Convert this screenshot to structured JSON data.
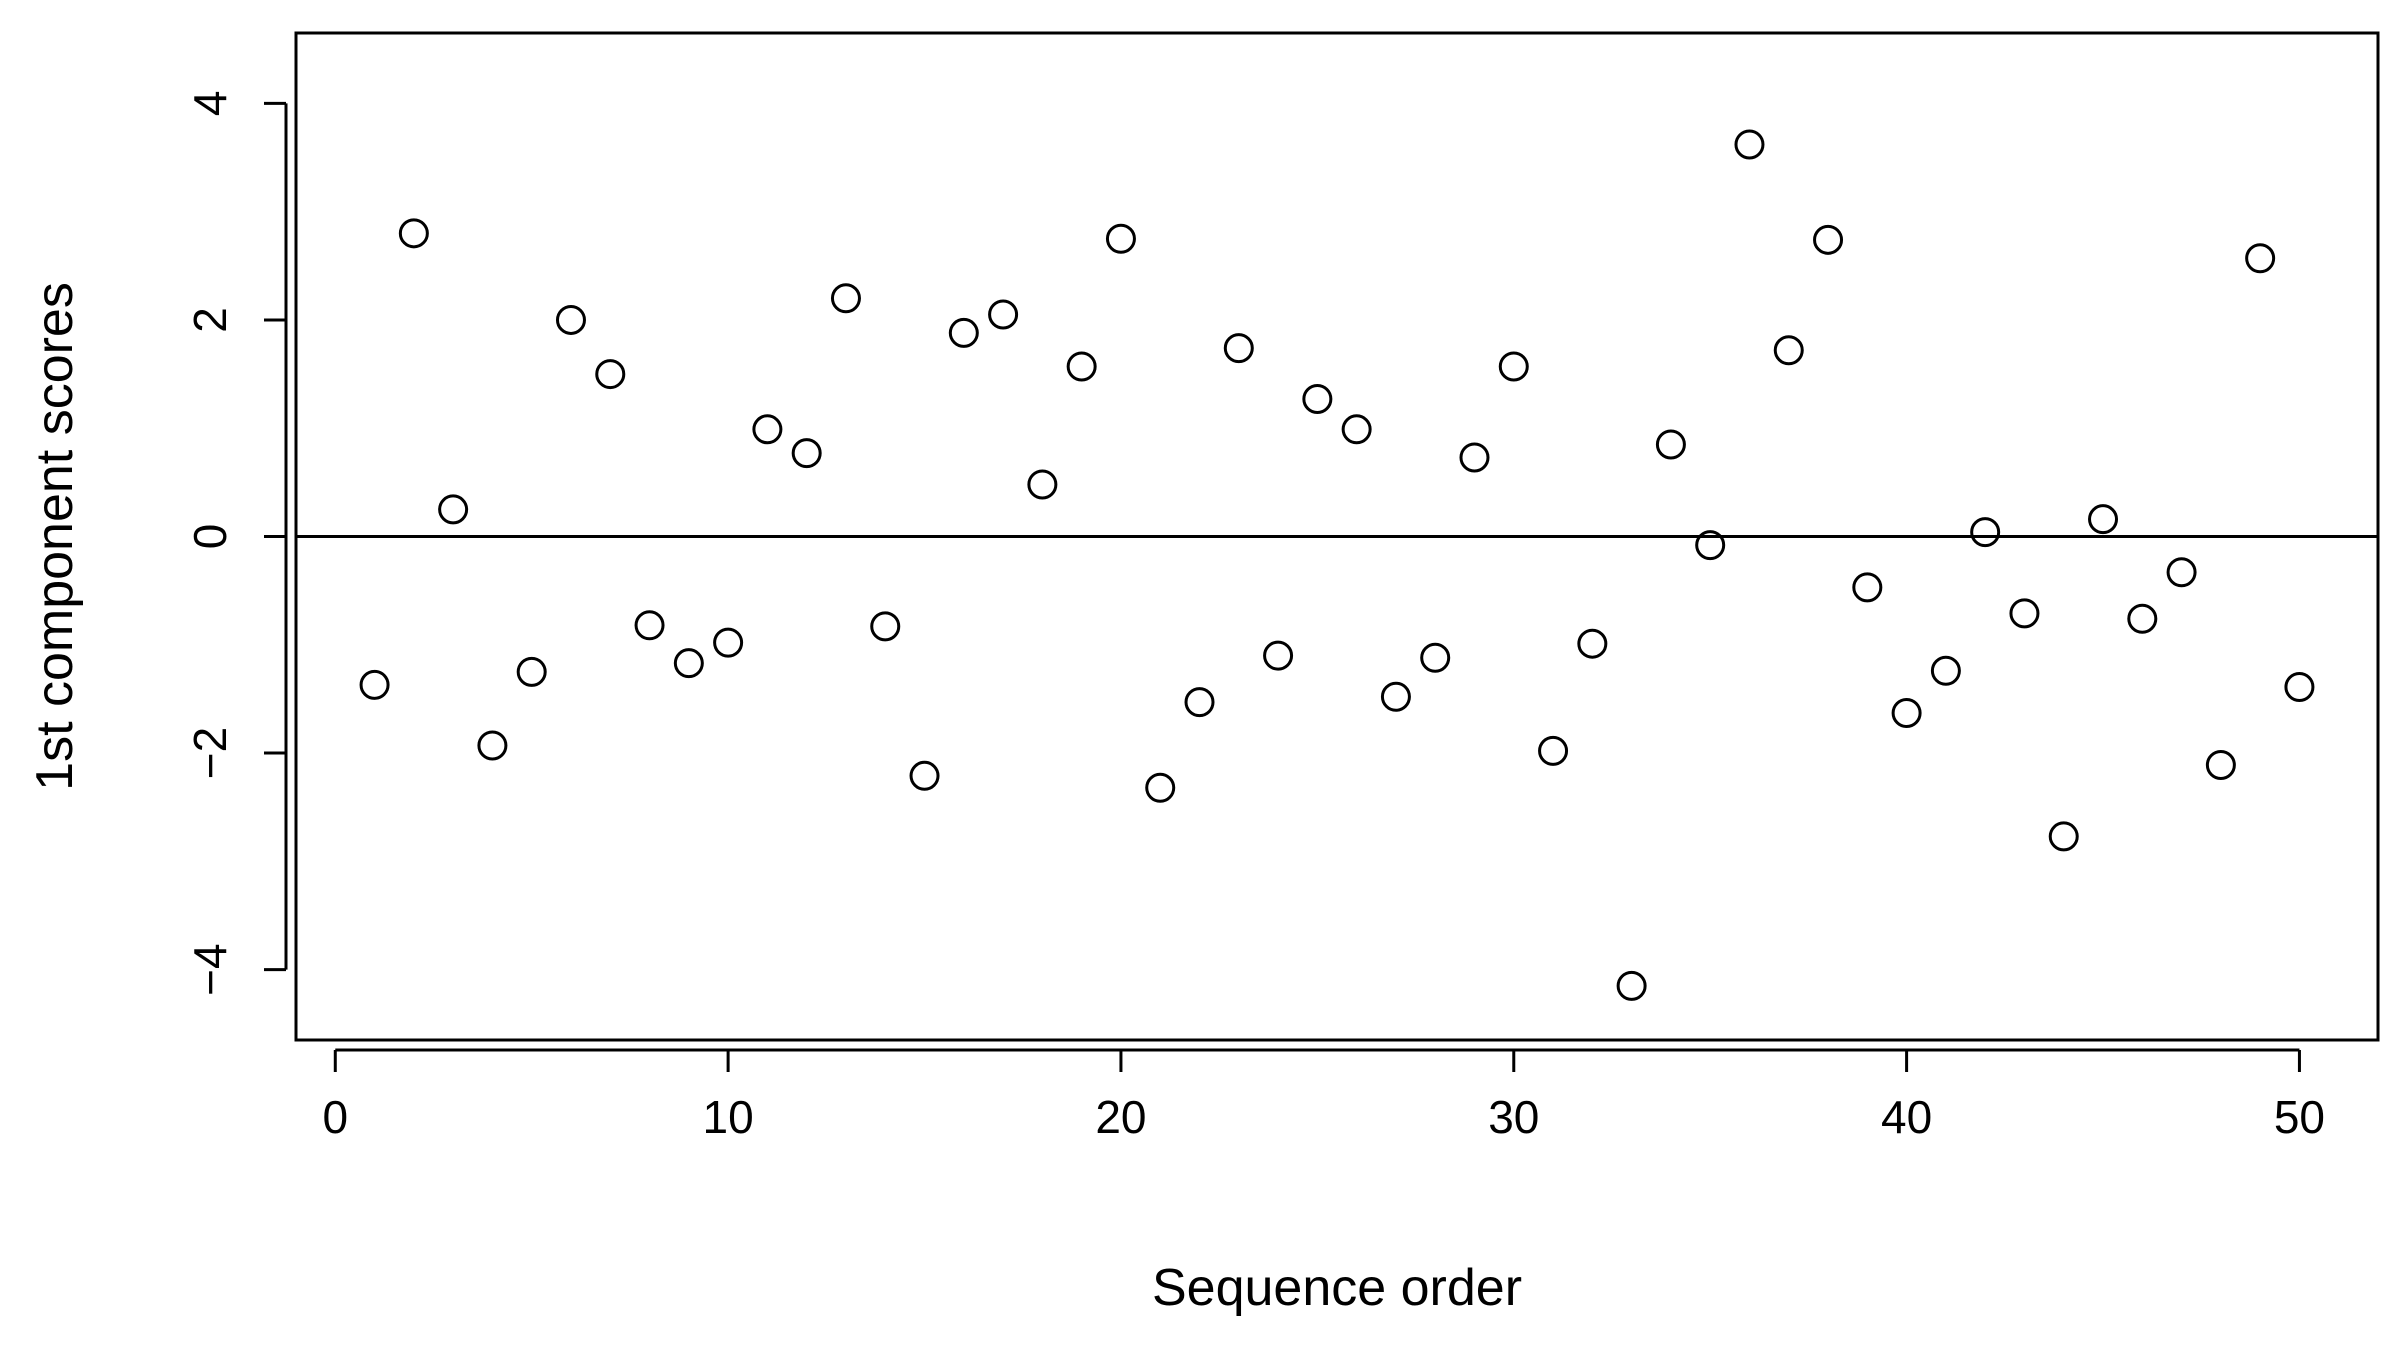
{
  "chart_data": {
    "type": "scatter",
    "title": "",
    "xlabel": "Sequence order",
    "ylabel": "1st component scores",
    "xlim": [
      -1,
      52
    ],
    "ylim": [
      -4.65,
      4.65
    ],
    "x_ticks": [
      0,
      10,
      20,
      30,
      40,
      50
    ],
    "x_tick_labels": [
      "0",
      "10",
      "20",
      "30",
      "40",
      "50"
    ],
    "y_ticks": [
      -4,
      -2,
      0,
      2,
      4
    ],
    "y_tick_labels": [
      "−4",
      "−2",
      "0",
      "2",
      "4"
    ],
    "reference_line": {
      "orientation": "horizontal",
      "y": 0
    },
    "grid": false,
    "marker": "open-circle",
    "x": [
      1,
      2,
      3,
      4,
      5,
      6,
      7,
      8,
      9,
      10,
      11,
      12,
      13,
      14,
      15,
      16,
      17,
      18,
      19,
      20,
      21,
      22,
      23,
      24,
      25,
      26,
      27,
      28,
      29,
      30,
      31,
      32,
      33,
      34,
      35,
      36,
      37,
      38,
      39,
      40,
      41,
      42,
      43,
      44,
      45,
      46,
      47,
      48,
      49,
      50
    ],
    "y": [
      -1.37,
      2.8,
      0.25,
      -1.93,
      -1.25,
      2.0,
      1.5,
      -0.82,
      -1.17,
      -0.98,
      0.99,
      0.77,
      2.2,
      -0.83,
      -2.21,
      1.88,
      2.05,
      0.48,
      1.57,
      2.75,
      -2.32,
      -1.53,
      1.74,
      -1.1,
      1.27,
      0.99,
      -1.48,
      -1.12,
      0.73,
      1.57,
      -1.98,
      -0.99,
      -4.15,
      0.85,
      -0.08,
      3.62,
      1.72,
      2.74,
      -0.47,
      -1.63,
      -1.24,
      0.04,
      -0.71,
      -2.77,
      0.16,
      -0.76,
      -0.33,
      -2.11,
      2.57,
      -1.39
    ]
  }
}
